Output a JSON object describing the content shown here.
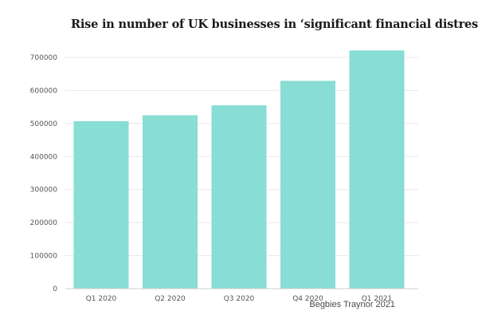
{
  "chart_data": {
    "type": "bar",
    "title": "Rise in number of UK businesses in ‘significant financial distress’",
    "xlabel": "",
    "ylabel": "",
    "categories": [
      "Q1 2020",
      "Q2 2020",
      "Q3 2020",
      "Q4 2020",
      "Q1 2021"
    ],
    "values": [
      507000,
      525000,
      555000,
      629000,
      721000
    ],
    "ylim": [
      0,
      700000
    ],
    "yticks": [
      0,
      100000,
      200000,
      300000,
      400000,
      500000,
      600000,
      700000
    ],
    "grid": true,
    "legend": "none"
  },
  "source": "Begbies Traynor 2021",
  "colors": {
    "bar": "#88ddd4",
    "grid": "#e8e8e8",
    "axis": "#d0d0d0"
  }
}
